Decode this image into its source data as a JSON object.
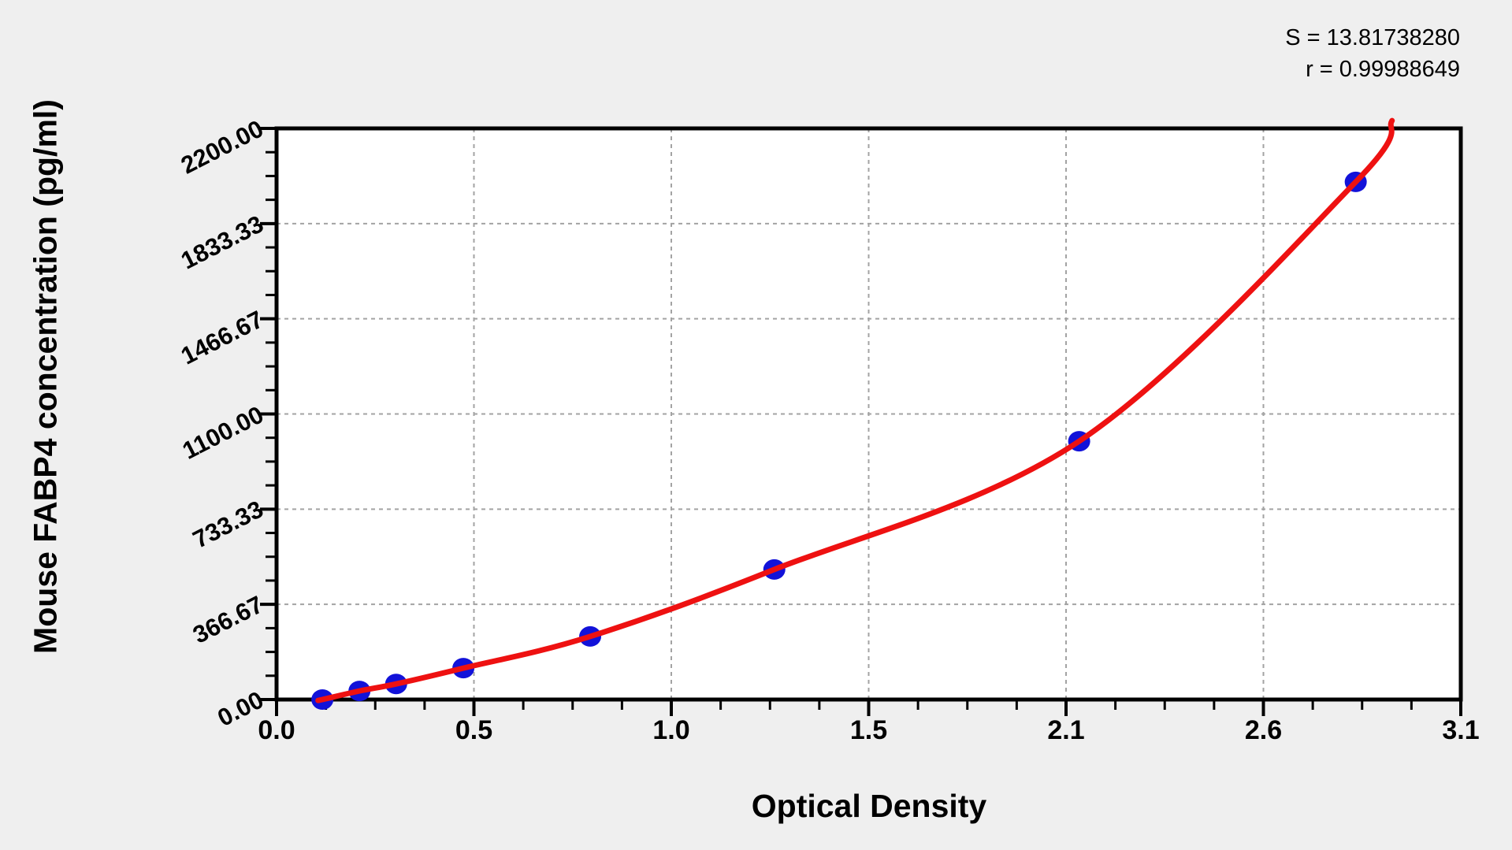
{
  "figure": {
    "background_color": "#efefef",
    "plot_background_color": "#ffffff",
    "grid_color": "#a3a3a3",
    "axis_color": "#000000",
    "stats": {
      "s_text": "S = 13.81738280",
      "r_text": "r = 0.99988649"
    }
  },
  "chart_data": {
    "type": "scatter",
    "title": "",
    "xlabel": "Optical Density",
    "ylabel": "Mouse FABP4 concentration (pg/ml)",
    "xlim": [
      0,
      3.1
    ],
    "ylim": [
      0,
      2200
    ],
    "x_tick_labels": [
      "0.0",
      "0.5",
      "1.0",
      "1.5",
      "2.1",
      "2.6",
      "3.1"
    ],
    "y_tick_labels": [
      "0.00",
      "366.67",
      "733.33",
      "1100.00",
      "1466.67",
      "1833.33",
      "2200.00"
    ],
    "minor_ticks_per_major_interval": 3,
    "grid": "dashed gridlines at major ticks",
    "legend": "none",
    "point_color": "#1212d9",
    "curve_color": "#ee1111",
    "points": [
      {
        "od": 0.12,
        "conc": 0
      },
      {
        "od": 0.217,
        "conc": 33
      },
      {
        "od": 0.313,
        "conc": 60
      },
      {
        "od": 0.489,
        "conc": 121
      },
      {
        "od": 0.821,
        "conc": 243
      },
      {
        "od": 1.303,
        "conc": 501
      },
      {
        "od": 2.101,
        "conc": 995
      },
      {
        "od": 2.825,
        "conc": 1994
      }
    ],
    "fit_curve": {
      "S": "13.81738280",
      "r": "0.99988649",
      "description": "red smooth standard curve through all points"
    }
  }
}
